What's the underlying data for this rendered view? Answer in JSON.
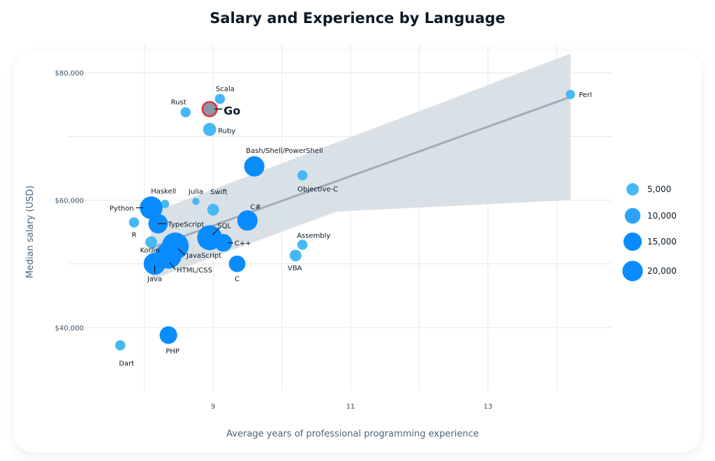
{
  "chart_data": {
    "type": "scatter",
    "title": "Salary and Experience by Language",
    "xlabel": "Average years of professional programming experience",
    "ylabel": "Median salary (USD)",
    "xlim": [
      7.2,
      14.8
    ],
    "ylim": [
      30000,
      82000
    ],
    "x_ticks": [
      9,
      11,
      13
    ],
    "x_tick_labels": [
      "9",
      "11",
      "13"
    ],
    "y_ticks": [
      40000,
      60000,
      80000
    ],
    "y_tick_labels": [
      "$40,000",
      "$60,000",
      "$80,000"
    ],
    "grid": true,
    "legend_position": "right",
    "legend": [
      {
        "value": 5000,
        "label": "5,000"
      },
      {
        "value": 10000,
        "label": "10,000"
      },
      {
        "value": 15000,
        "label": "15,000"
      },
      {
        "value": 20000,
        "label": "20,000"
      }
    ],
    "colors": {
      "point": "#0a8cff",
      "point_light": "#45b8f5",
      "highlight_fill": "#8c96a4",
      "highlight_stroke": "#e0303a",
      "trend_line": "#9eadbb",
      "band": "#d5dde3",
      "grid": "#e3e8ec"
    },
    "trend": {
      "x": [
        8.1,
        14.2
      ],
      "y": [
        52500,
        76200
      ],
      "band_upper": [
        58000,
        83000
      ],
      "band_lower": [
        47500,
        60000
      ]
    },
    "points": [
      {
        "name": "Perl",
        "x": 14.2,
        "y": 76600,
        "size": 2500
      },
      {
        "name": "Scala",
        "x": 9.1,
        "y": 75900,
        "size": 3000
      },
      {
        "name": "Go",
        "x": 8.95,
        "y": 74300,
        "size": 6000,
        "highlight": true
      },
      {
        "name": "Rust",
        "x": 8.6,
        "y": 73800,
        "size": 3000
      },
      {
        "name": "Ruby",
        "x": 8.95,
        "y": 71100,
        "size": 5000
      },
      {
        "name": "Bash/Shell/PowerShell",
        "x": 9.6,
        "y": 65300,
        "size": 12000
      },
      {
        "name": "Objective-C",
        "x": 10.3,
        "y": 63900,
        "size": 3000
      },
      {
        "name": "Julia",
        "x": 8.75,
        "y": 59800,
        "size": 1500
      },
      {
        "name": "Haskell",
        "x": 8.3,
        "y": 59400,
        "size": 2000
      },
      {
        "name": "Python",
        "x": 8.1,
        "y": 58800,
        "size": 15000
      },
      {
        "name": "Swift",
        "x": 9.0,
        "y": 58500,
        "size": 4000
      },
      {
        "name": "C#",
        "x": 9.5,
        "y": 56800,
        "size": 12000
      },
      {
        "name": "R",
        "x": 7.85,
        "y": 56500,
        "size": 3000
      },
      {
        "name": "TypeScript",
        "x": 8.2,
        "y": 56300,
        "size": 11000
      },
      {
        "name": "SQL",
        "x": 8.95,
        "y": 54100,
        "size": 18000
      },
      {
        "name": "C++",
        "x": 9.15,
        "y": 53300,
        "size": 9000
      },
      {
        "name": "Assembly",
        "x": 10.3,
        "y": 53000,
        "size": 3000
      },
      {
        "name": "Kotlin",
        "x": 8.1,
        "y": 53400,
        "size": 4000
      },
      {
        "name": "JavaScript",
        "x": 8.45,
        "y": 52800,
        "size": 21000
      },
      {
        "name": "HTML/CSS",
        "x": 8.35,
        "y": 51300,
        "size": 20000
      },
      {
        "name": "VBA",
        "x": 10.2,
        "y": 51300,
        "size": 4000
      },
      {
        "name": "Java",
        "x": 8.15,
        "y": 50000,
        "size": 14000
      },
      {
        "name": "C",
        "x": 9.35,
        "y": 50000,
        "size": 8000
      },
      {
        "name": "PHP",
        "x": 8.35,
        "y": 38800,
        "size": 9000
      },
      {
        "name": "Dart",
        "x": 7.65,
        "y": 37200,
        "size": 3000
      }
    ]
  }
}
